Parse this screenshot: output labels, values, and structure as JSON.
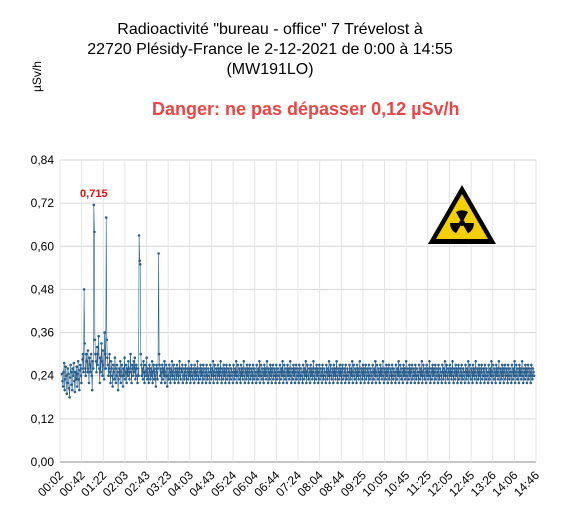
{
  "chart_data": {
    "type": "line",
    "title": [
      "Radioactivité \"bureau - office\"  7 Trévelost à",
      "22720 Plésidy-France le 2-12-2021 de 0:00 à 14:55",
      "(MW191LO)"
    ],
    "ylabel": "µSv/h",
    "xlabel": "",
    "annotation": "Danger: ne pas dépasser 0,12 µSv/h",
    "peak_label": "0,715",
    "ylim": [
      0,
      0.84
    ],
    "yticks": [
      "0,00",
      "0,12",
      "0,24",
      "0,36",
      "0,48",
      "0,60",
      "0,72",
      "0,84"
    ],
    "xticks": [
      "00:02",
      "00:42",
      "01:22",
      "02:03",
      "02:43",
      "03:23",
      "04:03",
      "04:43",
      "05:24",
      "06:04",
      "06:44",
      "07:24",
      "08:04",
      "08:44",
      "09:25",
      "10:05",
      "10:45",
      "11:25",
      "12:05",
      "12:45",
      "13:26",
      "14:06",
      "14:46"
    ],
    "series": [
      {
        "color": "#2a5f8f",
        "values": [
          0.245,
          0.225,
          0.21,
          0.25,
          0.275,
          0.2,
          0.23,
          0.265,
          0.24,
          0.19,
          0.22,
          0.26,
          0.245,
          0.205,
          0.18,
          0.235,
          0.27,
          0.25,
          0.215,
          0.2,
          0.26,
          0.24,
          0.275,
          0.225,
          0.195,
          0.25,
          0.23,
          0.265,
          0.21,
          0.245,
          0.28,
          0.23,
          0.2,
          0.255,
          0.27,
          0.24,
          0.22,
          0.26,
          0.285,
          0.3,
          0.25,
          0.48,
          0.33,
          0.26,
          0.24,
          0.3,
          0.28,
          0.25,
          0.31,
          0.26,
          0.22,
          0.29,
          0.27,
          0.25,
          0.3,
          0.24,
          0.2,
          0.28,
          0.26,
          0.715,
          0.64,
          0.34,
          0.3,
          0.28,
          0.25,
          0.32,
          0.27,
          0.3,
          0.35,
          0.26,
          0.22,
          0.29,
          0.25,
          0.33,
          0.28,
          0.24,
          0.31,
          0.27,
          0.23,
          0.36,
          0.3,
          0.26,
          0.68,
          0.34,
          0.29,
          0.27,
          0.24,
          0.26,
          0.3,
          0.25,
          0.22,
          0.28,
          0.26,
          0.24,
          0.21,
          0.27,
          0.25,
          0.23,
          0.29,
          0.26,
          0.22,
          0.24,
          0.27,
          0.25,
          0.2,
          0.23,
          0.26,
          0.24,
          0.28,
          0.22,
          0.25,
          0.27,
          0.24,
          0.21,
          0.26,
          0.24,
          0.29,
          0.23,
          0.25,
          0.27,
          0.22,
          0.26,
          0.24,
          0.28,
          0.25,
          0.23,
          0.26,
          0.3,
          0.25,
          0.22,
          0.27,
          0.26,
          0.24,
          0.28,
          0.25,
          0.29,
          0.23,
          0.26,
          0.27,
          0.24,
          0.22,
          0.26,
          0.24,
          0.63,
          0.56,
          0.55,
          0.3,
          0.27,
          0.24,
          0.26,
          0.23,
          0.28,
          0.25,
          0.22,
          0.27,
          0.25,
          0.24,
          0.29,
          0.23,
          0.26,
          0.24,
          0.22,
          0.27,
          0.25,
          0.23,
          0.26,
          0.24,
          0.28,
          0.22,
          0.25,
          0.27,
          0.23,
          0.26,
          0.24,
          0.21,
          0.27,
          0.25,
          0.23,
          0.26,
          0.58,
          0.3,
          0.27,
          0.24,
          0.26,
          0.22,
          0.25,
          0.27,
          0.23,
          0.26,
          0.24,
          0.28,
          0.22,
          0.25,
          0.27,
          0.24,
          0.21,
          0.26,
          0.24,
          0.23,
          0.27,
          0.25,
          0.22,
          0.26,
          0.24,
          0.28,
          0.23,
          0.25,
          0.27,
          0.24,
          0.22,
          0.26,
          0.25,
          0.23,
          0.27,
          0.24,
          0.26,
          0.22,
          0.25,
          0.28,
          0.24,
          0.23,
          0.26,
          0.25,
          0.27,
          0.22,
          0.24,
          0.26,
          0.23,
          0.25,
          0.27,
          0.24,
          0.22,
          0.26,
          0.25,
          0.23,
          0.28,
          0.24,
          0.26,
          0.22,
          0.25,
          0.27,
          0.24,
          0.23,
          0.26,
          0.25,
          0.22,
          0.27,
          0.24,
          0.26,
          0.23,
          0.25,
          0.28,
          0.24,
          0.22,
          0.26,
          0.25,
          0.23,
          0.27,
          0.24,
          0.26,
          0.22,
          0.25,
          0.27,
          0.23,
          0.24,
          0.26,
          0.25,
          0.22,
          0.27,
          0.24,
          0.23,
          0.26,
          0.25,
          0.24,
          0.22,
          0.27,
          0.25,
          0.23,
          0.26,
          0.24,
          0.28,
          0.22,
          0.25,
          0.27,
          0.24,
          0.23,
          0.26,
          0.25,
          0.22,
          0.27,
          0.24,
          0.26,
          0.23,
          0.25,
          0.28,
          0.24,
          0.22,
          0.26,
          0.25,
          0.23,
          0.27,
          0.24,
          0.26,
          0.22,
          0.25,
          0.27,
          0.23,
          0.24,
          0.26,
          0.25,
          0.22,
          0.27,
          0.24,
          0.23,
          0.26,
          0.25,
          0.24,
          0.22,
          0.27,
          0.25,
          0.23,
          0.26,
          0.24,
          0.28,
          0.22,
          0.25,
          0.27,
          0.24,
          0.23,
          0.26,
          0.25,
          0.22,
          0.27,
          0.24,
          0.26,
          0.23,
          0.25,
          0.28,
          0.24,
          0.22,
          0.26,
          0.25,
          0.23,
          0.27,
          0.24,
          0.26,
          0.22,
          0.25,
          0.27,
          0.23,
          0.24,
          0.26,
          0.25,
          0.22,
          0.27,
          0.24,
          0.23,
          0.26,
          0.25,
          0.24,
          0.22,
          0.27,
          0.25,
          0.23,
          0.26,
          0.24,
          0.28,
          0.22,
          0.25,
          0.27,
          0.24,
          0.23,
          0.26,
          0.25,
          0.22,
          0.27,
          0.24,
          0.26,
          0.23,
          0.25,
          0.28,
          0.24,
          0.22,
          0.26,
          0.25,
          0.23,
          0.27,
          0.24,
          0.26,
          0.22,
          0.25,
          0.27,
          0.23,
          0.24,
          0.26,
          0.25,
          0.22,
          0.27,
          0.24,
          0.23,
          0.26,
          0.25,
          0.24,
          0.22,
          0.27,
          0.25,
          0.23,
          0.26,
          0.24,
          0.28,
          0.22,
          0.25,
          0.27,
          0.24,
          0.23,
          0.26,
          0.25,
          0.22,
          0.27,
          0.24,
          0.26,
          0.23,
          0.25,
          0.28,
          0.24,
          0.22,
          0.26,
          0.25,
          0.23,
          0.27,
          0.24,
          0.26,
          0.22,
          0.25,
          0.27,
          0.23,
          0.24,
          0.26,
          0.25,
          0.22,
          0.27,
          0.24,
          0.23,
          0.26,
          0.25,
          0.24,
          0.22,
          0.27,
          0.25,
          0.23,
          0.26,
          0.24,
          0.28,
          0.22,
          0.25,
          0.27,
          0.24,
          0.23,
          0.26,
          0.25,
          0.22,
          0.27,
          0.24,
          0.26,
          0.23,
          0.25,
          0.28,
          0.24,
          0.22,
          0.26,
          0.25,
          0.23,
          0.27,
          0.24,
          0.26,
          0.22,
          0.25,
          0.27,
          0.23,
          0.24,
          0.26,
          0.25,
          0.22,
          0.27,
          0.24,
          0.23,
          0.26,
          0.25,
          0.24,
          0.22,
          0.27,
          0.25,
          0.23,
          0.26,
          0.24,
          0.28,
          0.22,
          0.25,
          0.27,
          0.24,
          0.23,
          0.26,
          0.25,
          0.22,
          0.27,
          0.24,
          0.26,
          0.23,
          0.25,
          0.28,
          0.24,
          0.22,
          0.26,
          0.25,
          0.23,
          0.27,
          0.24,
          0.26,
          0.22,
          0.25,
          0.27,
          0.23,
          0.24,
          0.26,
          0.25,
          0.22,
          0.27,
          0.24,
          0.23,
          0.26,
          0.25,
          0.24,
          0.22,
          0.27,
          0.25,
          0.23,
          0.26,
          0.24,
          0.28,
          0.22,
          0.25,
          0.27,
          0.24,
          0.23,
          0.26,
          0.25,
          0.22,
          0.27,
          0.24,
          0.26,
          0.23,
          0.25,
          0.28,
          0.24,
          0.22,
          0.26,
          0.25,
          0.23,
          0.27,
          0.24,
          0.26,
          0.22,
          0.25,
          0.27,
          0.23,
          0.24,
          0.26,
          0.25,
          0.22,
          0.27,
          0.24,
          0.23,
          0.26,
          0.25,
          0.24,
          0.22,
          0.27,
          0.25,
          0.23,
          0.26,
          0.24,
          0.28,
          0.22,
          0.25,
          0.27,
          0.24,
          0.23,
          0.26,
          0.25,
          0.22,
          0.27,
          0.24,
          0.26,
          0.23,
          0.25,
          0.28,
          0.24,
          0.22,
          0.26,
          0.25,
          0.23,
          0.27,
          0.24,
          0.26,
          0.22,
          0.25,
          0.27,
          0.23,
          0.24,
          0.26,
          0.25,
          0.22,
          0.27,
          0.24,
          0.23,
          0.26,
          0.25,
          0.24,
          0.22,
          0.27,
          0.25,
          0.23,
          0.26,
          0.24,
          0.28,
          0.22,
          0.25,
          0.27,
          0.24,
          0.23,
          0.26,
          0.25,
          0.22,
          0.27,
          0.24,
          0.26,
          0.23,
          0.25,
          0.28,
          0.24,
          0.22,
          0.26,
          0.25,
          0.23,
          0.27,
          0.24,
          0.26,
          0.22,
          0.25,
          0.27,
          0.23,
          0.24,
          0.26,
          0.25,
          0.22,
          0.27,
          0.24,
          0.23,
          0.26,
          0.25,
          0.24,
          0.22,
          0.27,
          0.25,
          0.23,
          0.26,
          0.24,
          0.28,
          0.22,
          0.25,
          0.27,
          0.24,
          0.23,
          0.26,
          0.25,
          0.22,
          0.27,
          0.24,
          0.26,
          0.23,
          0.25,
          0.28,
          0.24,
          0.22,
          0.26,
          0.25,
          0.23,
          0.27,
          0.24,
          0.26,
          0.22,
          0.25,
          0.27,
          0.23,
          0.24,
          0.26,
          0.25,
          0.22,
          0.27,
          0.24,
          0.23,
          0.26,
          0.25,
          0.24,
          0.22,
          0.27,
          0.25,
          0.23,
          0.26,
          0.24,
          0.28,
          0.22,
          0.25,
          0.27,
          0.24,
          0.23,
          0.26,
          0.25,
          0.22,
          0.27,
          0.24,
          0.26,
          0.23,
          0.25,
          0.28,
          0.24,
          0.22,
          0.26,
          0.25,
          0.23,
          0.27,
          0.24,
          0.26,
          0.22,
          0.25,
          0.27,
          0.23,
          0.24,
          0.26,
          0.25,
          0.22,
          0.27,
          0.24,
          0.23,
          0.26,
          0.25,
          0.24,
          0.22,
          0.27,
          0.25,
          0.23,
          0.26,
          0.24,
          0.28,
          0.22,
          0.25,
          0.27,
          0.24,
          0.23,
          0.26,
          0.25,
          0.22,
          0.27,
          0.24,
          0.26,
          0.23,
          0.25,
          0.28,
          0.24,
          0.22,
          0.26,
          0.25,
          0.23,
          0.27,
          0.24,
          0.26,
          0.22,
          0.25,
          0.27,
          0.23,
          0.24,
          0.26,
          0.25,
          0.22,
          0.27,
          0.24,
          0.23,
          0.26,
          0.25,
          0.24,
          0.22,
          0.27,
          0.25,
          0.23,
          0.26,
          0.24,
          0.28,
          0.22,
          0.25,
          0.27,
          0.24,
          0.23,
          0.26,
          0.25,
          0.22,
          0.27,
          0.24,
          0.26,
          0.23,
          0.25,
          0.28,
          0.24,
          0.22,
          0.26,
          0.25,
          0.23,
          0.27,
          0.24,
          0.26,
          0.22,
          0.25,
          0.27,
          0.23,
          0.24,
          0.26,
          0.25,
          0.22,
          0.27,
          0.24,
          0.23,
          0.26,
          0.25,
          0.24,
          0.22,
          0.27,
          0.25,
          0.23,
          0.26,
          0.24,
          0.28,
          0.22,
          0.25,
          0.27,
          0.24,
          0.23,
          0.26,
          0.25,
          0.22,
          0.27,
          0.24,
          0.26,
          0.23,
          0.25,
          0.28,
          0.24,
          0.22,
          0.26,
          0.25,
          0.23,
          0.27,
          0.24,
          0.26,
          0.22,
          0.25,
          0.27,
          0.23,
          0.24,
          0.26,
          0.25,
          0.22,
          0.27,
          0.24,
          0.23,
          0.26,
          0.25,
          0.24
        ]
      }
    ],
    "grid": true,
    "colors": {
      "danger": "#ee4444",
      "peak_label": "#dd1111",
      "hazard_yellow": "#f5d000"
    },
    "icon": "radiation-hazard-icon"
  }
}
